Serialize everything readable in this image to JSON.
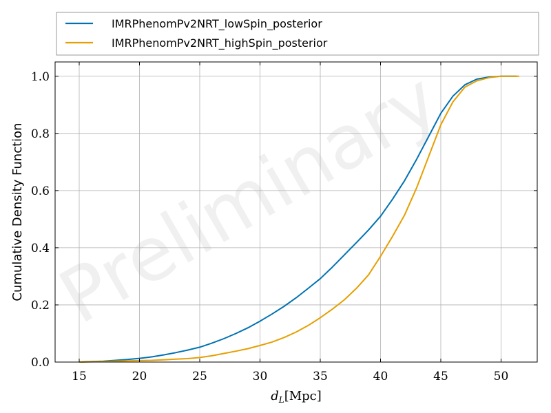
{
  "chart_data": {
    "type": "line",
    "title": "",
    "xlabel": "d_L[Mpc]",
    "ylabel": "Cumulative Density Function",
    "xlim": [
      13,
      53
    ],
    "ylim": [
      0,
      1.05
    ],
    "x_ticks": [
      15,
      20,
      25,
      30,
      35,
      40,
      45,
      50
    ],
    "y_ticks": [
      0.0,
      0.2,
      0.4,
      0.6,
      0.8,
      1.0
    ],
    "x_tick_labels": [
      "15",
      "20",
      "25",
      "30",
      "35",
      "40",
      "45",
      "50"
    ],
    "y_tick_labels": [
      "0.0",
      "0.2",
      "0.4",
      "0.6",
      "0.8",
      "1.0"
    ],
    "grid": true,
    "legend_position": "top, outside plot",
    "watermark": "Preliminary",
    "series": [
      {
        "name": "IMRPhenomPv2NRT_lowSpin_posterior",
        "color": "#0072b2",
        "x": [
          15,
          16,
          17,
          18,
          19,
          20,
          21,
          22,
          23,
          24,
          25,
          26,
          27,
          28,
          29,
          30,
          31,
          32,
          33,
          34,
          35,
          36,
          37,
          38,
          39,
          40,
          41,
          42,
          43,
          44,
          45,
          46,
          47,
          48,
          49,
          50,
          51.3
        ],
        "y": [
          0.0,
          0.002,
          0.003,
          0.006,
          0.009,
          0.013,
          0.018,
          0.025,
          0.033,
          0.042,
          0.052,
          0.066,
          0.082,
          0.1,
          0.12,
          0.143,
          0.168,
          0.195,
          0.225,
          0.258,
          0.292,
          0.332,
          0.375,
          0.418,
          0.462,
          0.51,
          0.57,
          0.635,
          0.71,
          0.79,
          0.87,
          0.93,
          0.97,
          0.99,
          0.997,
          1.0,
          1.0
        ]
      },
      {
        "name": "IMRPhenomPv2NRT_highSpin_posterior",
        "color": "#e69f00",
        "x": [
          15,
          16,
          17,
          18,
          19,
          20,
          21,
          22,
          23,
          24,
          25,
          26,
          27,
          28,
          29,
          30,
          31,
          32,
          33,
          34,
          35,
          36,
          37,
          38,
          39,
          40,
          41,
          42,
          43,
          44,
          45,
          46,
          47,
          48,
          49,
          50,
          51.5
        ],
        "y": [
          0.0,
          0.001,
          0.002,
          0.003,
          0.004,
          0.005,
          0.006,
          0.008,
          0.01,
          0.012,
          0.016,
          0.022,
          0.03,
          0.038,
          0.047,
          0.058,
          0.07,
          0.086,
          0.105,
          0.128,
          0.155,
          0.185,
          0.218,
          0.258,
          0.305,
          0.37,
          0.44,
          0.515,
          0.61,
          0.72,
          0.83,
          0.91,
          0.962,
          0.984,
          0.995,
          1.0,
          1.0
        ]
      }
    ]
  }
}
